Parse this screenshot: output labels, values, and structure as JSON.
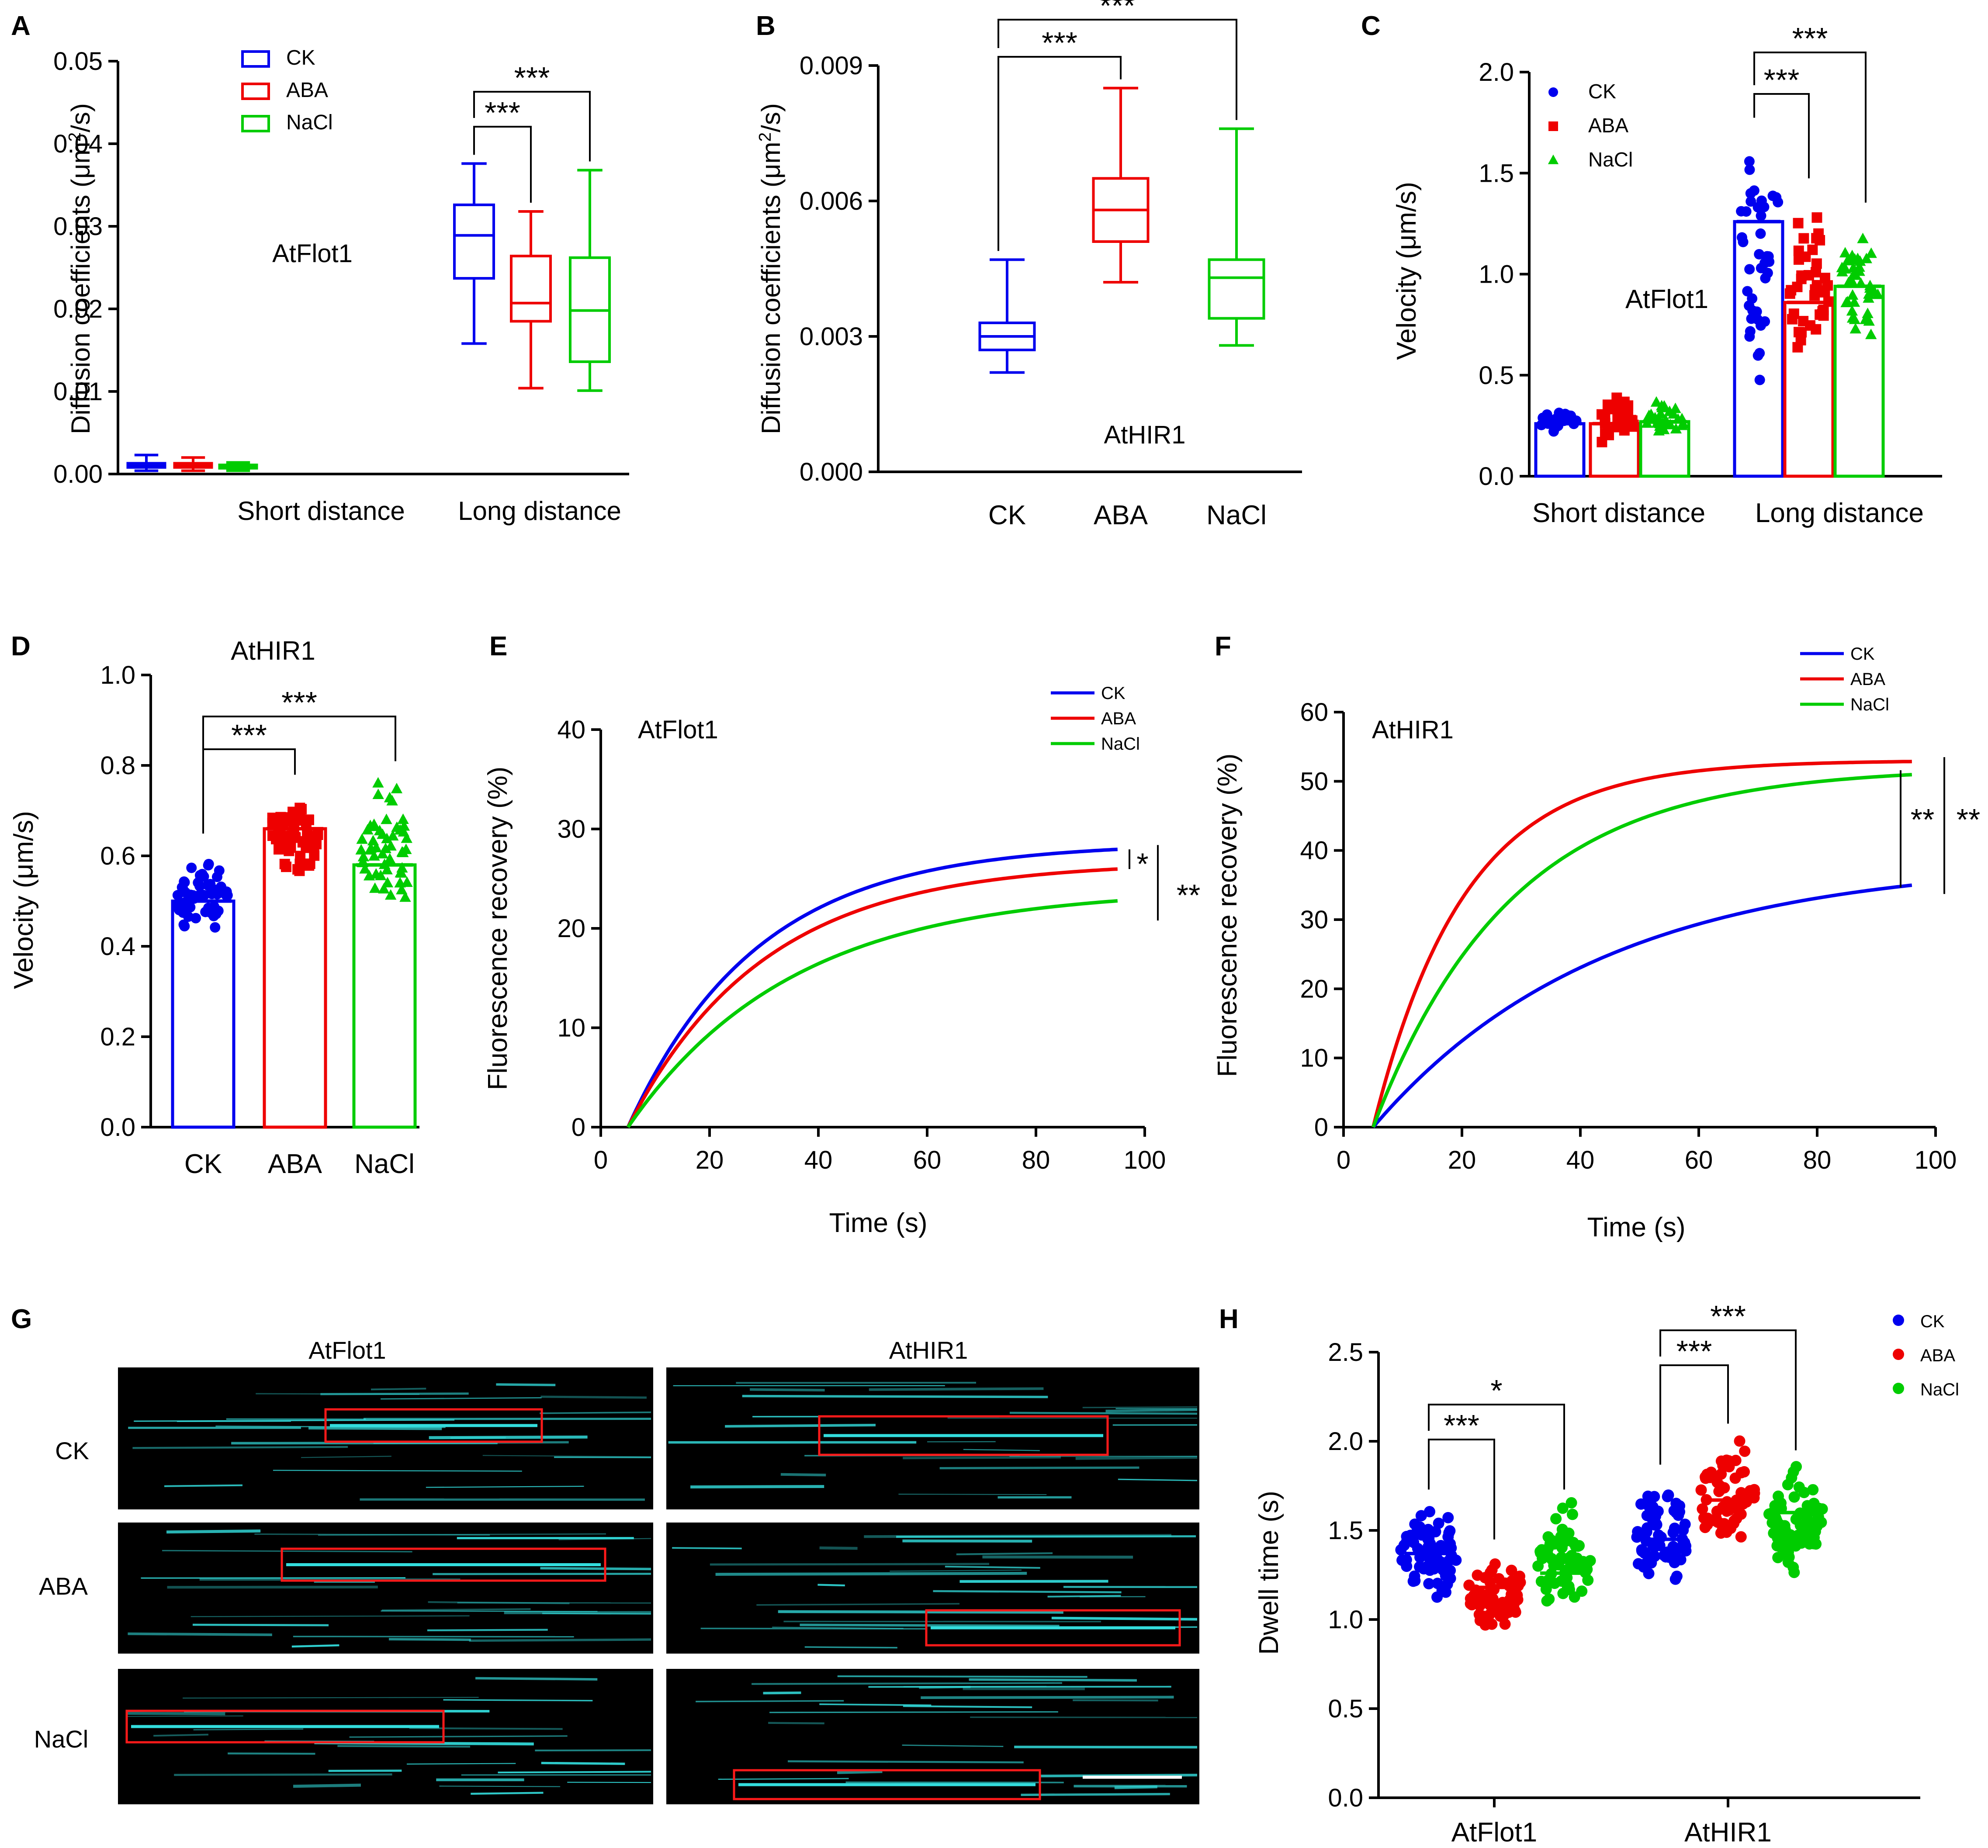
{
  "colors": {
    "ck": "#0000ee",
    "aba": "#ee0000",
    "nacl": "#00cc00",
    "kymo_bg": "#000000",
    "kymo_streak": "#33dddd",
    "box": "#ff1a1a"
  },
  "chart_data": [
    {
      "panel": "A",
      "type": "box",
      "ylabel_prefix": "Diffusion coefficients (μm",
      "ylabel_sup": "2",
      "ylabel_suffix": "/s)",
      "ylim": [
        0,
        0.05
      ],
      "yticks": [
        "0.00",
        "0.01",
        "0.02",
        "0.03",
        "0.04",
        "0.05"
      ],
      "categories": [
        "Short distance",
        "Long distance"
      ],
      "annotation": "AtFlot1",
      "legend": [
        "CK",
        "ABA",
        "NaCl"
      ],
      "series": [
        {
          "name": "CK",
          "boxes": [
            {
              "min": 0.0004,
              "q1": 0.0008,
              "median": 0.001,
              "q3": 0.0013,
              "max": 0.0023
            },
            {
              "min": 0.0158,
              "q1": 0.0237,
              "median": 0.0289,
              "q3": 0.0326,
              "max": 0.0376
            }
          ]
        },
        {
          "name": "ABA",
          "boxes": [
            {
              "min": 0.0004,
              "q1": 0.0008,
              "median": 0.001,
              "q3": 0.0013,
              "max": 0.002
            },
            {
              "min": 0.0104,
              "q1": 0.0185,
              "median": 0.0207,
              "q3": 0.0264,
              "max": 0.0318
            }
          ]
        },
        {
          "name": "NaCl",
          "boxes": [
            {
              "min": 0.0004,
              "q1": 0.0007,
              "median": 0.0009,
              "q3": 0.0011,
              "max": 0.0014
            },
            {
              "min": 0.0101,
              "q1": 0.0136,
              "median": 0.0198,
              "q3": 0.0262,
              "max": 0.0368
            }
          ]
        }
      ],
      "significance": [
        {
          "from": "CK",
          "to": "ABA",
          "label": "***"
        },
        {
          "from": "CK",
          "to": "NaCl",
          "label": "***"
        }
      ]
    },
    {
      "panel": "B",
      "type": "box",
      "ylabel_prefix": "Diffusion coefficients (μm",
      "ylabel_sup": "2",
      "ylabel_suffix": "/s)",
      "ylim": [
        0,
        0.009
      ],
      "yticks": [
        "0.000",
        "0.003",
        "0.006",
        "0.009"
      ],
      "categories": [
        "CK",
        "ABA",
        "NaCl"
      ],
      "annotation": "AtHIR1",
      "boxes": [
        {
          "name": "CK",
          "min": 0.0022,
          "q1": 0.0027,
          "median": 0.003,
          "q3": 0.0033,
          "max": 0.0047
        },
        {
          "name": "ABA",
          "min": 0.0042,
          "q1": 0.0051,
          "median": 0.0058,
          "q3": 0.0065,
          "max": 0.0085
        },
        {
          "name": "NaCl",
          "min": 0.0028,
          "q1": 0.0034,
          "median": 0.0043,
          "q3": 0.0047,
          "max": 0.0076
        }
      ],
      "significance": [
        {
          "from": "CK",
          "to": "ABA",
          "label": "***"
        },
        {
          "from": "CK",
          "to": "NaCl",
          "label": "***"
        }
      ]
    },
    {
      "panel": "C",
      "type": "bar",
      "ylabel": "Velocity (μm/s)",
      "ylim": [
        0,
        2.0
      ],
      "yticks": [
        "0.0",
        "0.5",
        "1.0",
        "1.5",
        "2.0"
      ],
      "categories": [
        "Short distance",
        "Long distance"
      ],
      "annotation": "AtFlot1",
      "legend": [
        "CK",
        "ABA",
        "NaCl"
      ],
      "series": [
        {
          "name": "CK",
          "values": [
            0.26,
            1.26
          ],
          "spread": [
            [
              0.18,
              0.36
            ],
            [
              0.35,
              1.72
            ]
          ]
        },
        {
          "name": "ABA",
          "values": [
            0.26,
            0.86
          ],
          "spread": [
            [
              0.15,
              0.43
            ],
            [
              0.5,
              1.42
            ]
          ]
        },
        {
          "name": "NaCl",
          "values": [
            0.27,
            0.94
          ],
          "spread": [
            [
              0.2,
              0.38
            ],
            [
              0.62,
              1.3
            ]
          ]
        }
      ],
      "significance": [
        {
          "from": "CK",
          "to": "ABA",
          "label": "***"
        },
        {
          "from": "CK",
          "to": "NaCl",
          "label": "***"
        }
      ]
    },
    {
      "panel": "D",
      "type": "bar",
      "title": "AtHIR1",
      "ylabel": "Velocity (μm/s)",
      "ylim": [
        0,
        1.0
      ],
      "yticks": [
        "0.0",
        "0.2",
        "0.4",
        "0.6",
        "0.8",
        "1.0"
      ],
      "categories": [
        "CK",
        "ABA",
        "NaCl"
      ],
      "values": [
        0.5,
        0.66,
        0.58
      ],
      "spread": [
        [
          0.4,
          0.63
        ],
        [
          0.53,
          0.76
        ],
        [
          0.43,
          0.79
        ]
      ],
      "significance": [
        {
          "from": "CK",
          "to": "ABA",
          "label": "***"
        },
        {
          "from": "CK",
          "to": "NaCl",
          "label": "***"
        }
      ]
    },
    {
      "panel": "E",
      "type": "line",
      "xlabel": "Time (s)",
      "ylabel": "Fluorescence recovery (%)",
      "xlim": [
        0,
        100
      ],
      "ylim": [
        0,
        40
      ],
      "xticks": [
        "0",
        "20",
        "40",
        "60",
        "80",
        "100"
      ],
      "yticks": [
        "0",
        "10",
        "20",
        "30",
        "40"
      ],
      "annotation": "AtFlot1",
      "legend": [
        "CK",
        "ABA",
        "NaCl"
      ],
      "series": [
        {
          "name": "CK",
          "plateau": 28.6,
          "k": 0.042,
          "t0": 5,
          "t_end": 95
        },
        {
          "name": "ABA",
          "plateau": 26.7,
          "k": 0.04,
          "t0": 5,
          "t_end": 95
        },
        {
          "name": "NaCl",
          "plateau": 24.0,
          "k": 0.033,
          "t0": 5,
          "t_end": 95
        }
      ],
      "significance": [
        "*",
        "**"
      ]
    },
    {
      "panel": "F",
      "type": "line",
      "xlabel": "Time (s)",
      "ylabel": "Fluorescence recovery (%)",
      "xlim": [
        0,
        100
      ],
      "ylim": [
        0,
        60
      ],
      "xticks": [
        "0",
        "20",
        "40",
        "60",
        "80",
        "100"
      ],
      "yticks": [
        "0",
        "10",
        "20",
        "30",
        "40",
        "50",
        "60"
      ],
      "annotation": "AtHIR1",
      "legend": [
        "CK",
        "ABA",
        "NaCl"
      ],
      "series": [
        {
          "name": "CK",
          "plateau": 38.6,
          "k": 0.026,
          "t0": 5,
          "t_end": 96
        },
        {
          "name": "ABA",
          "plateau": 53.0,
          "k": 0.065,
          "t0": 5,
          "t_end": 96
        },
        {
          "name": "NaCl",
          "plateau": 52.0,
          "k": 0.043,
          "t0": 5,
          "t_end": 96
        }
      ],
      "significance": [
        "**",
        "**"
      ]
    },
    {
      "panel": "H",
      "type": "scatter",
      "ylabel": "Dwell time (s)",
      "ylim": [
        0,
        2.5
      ],
      "yticks": [
        "0.0",
        "0.5",
        "1.0",
        "1.5",
        "2.0",
        "2.5"
      ],
      "categories": [
        "AtFlot1",
        "AtHIR1"
      ],
      "legend": [
        "CK",
        "ABA",
        "NaCl"
      ],
      "series": [
        {
          "name": "CK",
          "means": [
            1.37,
            1.45
          ],
          "spread": [
            [
              1.02,
              1.68
            ],
            [
              1.13,
              1.82
            ]
          ]
        },
        {
          "name": "ABA",
          "means": [
            1.18,
            1.67
          ],
          "spread": [
            [
              0.85,
              1.4
            ],
            [
              1.28,
              2.05
            ]
          ]
        },
        {
          "name": "NaCl",
          "means": [
            1.26,
            1.6
          ],
          "spread": [
            [
              0.98,
              1.68
            ],
            [
              1.12,
              1.9
            ]
          ]
        }
      ],
      "significance": [
        {
          "group": "AtFlot1",
          "from": "CK",
          "to": "ABA",
          "label": "***"
        },
        {
          "group": "AtFlot1",
          "from": "CK",
          "to": "NaCl",
          "label": "*"
        },
        {
          "group": "AtHIR1",
          "from": "CK",
          "to": "ABA",
          "label": "***"
        },
        {
          "group": "AtHIR1",
          "from": "CK",
          "to": "NaCl",
          "label": "***"
        }
      ]
    }
  ],
  "panel_g": {
    "label": "G",
    "columns": [
      "AtFlot1",
      "AtHIR1"
    ],
    "rows": [
      "CK",
      "ABA",
      "NaCl"
    ]
  }
}
